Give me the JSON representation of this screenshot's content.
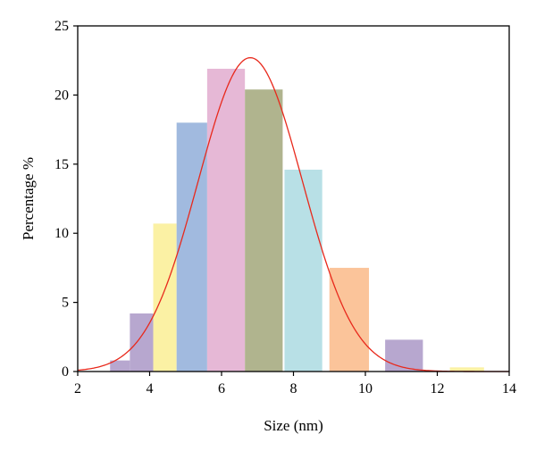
{
  "chart_data": {
    "type": "bar",
    "xlabel": "Size (nm)",
    "ylabel": "Percentage %",
    "xlim": [
      2,
      14
    ],
    "ylim": [
      0,
      25
    ],
    "xticks": [
      2,
      4,
      6,
      8,
      10,
      12,
      14
    ],
    "yticks": [
      0,
      5,
      10,
      15,
      20,
      25
    ],
    "grid": false,
    "bars": [
      {
        "x0": 2.9,
        "x1": 3.45,
        "value": 0.8,
        "color": "#b7a7cf"
      },
      {
        "x0": 3.45,
        "x1": 4.1,
        "value": 4.2,
        "color": "#b7a7cf"
      },
      {
        "x0": 4.1,
        "x1": 4.75,
        "value": 10.7,
        "color": "#fbf1a4"
      },
      {
        "x0": 4.75,
        "x1": 5.6,
        "value": 18.0,
        "color": "#a1badf"
      },
      {
        "x0": 5.6,
        "x1": 6.65,
        "value": 21.9,
        "color": "#e6b8d6"
      },
      {
        "x0": 6.65,
        "x1": 7.7,
        "value": 20.4,
        "color": "#b0b48e"
      },
      {
        "x0": 7.75,
        "x1": 8.8,
        "value": 14.6,
        "color": "#b8e0e6"
      },
      {
        "x0": 9.0,
        "x1": 10.1,
        "value": 7.5,
        "color": "#fbc49a"
      },
      {
        "x0": 10.55,
        "x1": 11.6,
        "value": 2.3,
        "color": "#b7a7cf"
      },
      {
        "x0": 12.35,
        "x1": 13.3,
        "value": 0.3,
        "color": "#fbf1a4"
      }
    ],
    "fit_curve": {
      "type": "gaussian",
      "color": "#e8291c",
      "amplitude": 22.7,
      "mean": 6.8,
      "sigma": 1.45,
      "x_range": [
        2,
        14
      ]
    }
  }
}
